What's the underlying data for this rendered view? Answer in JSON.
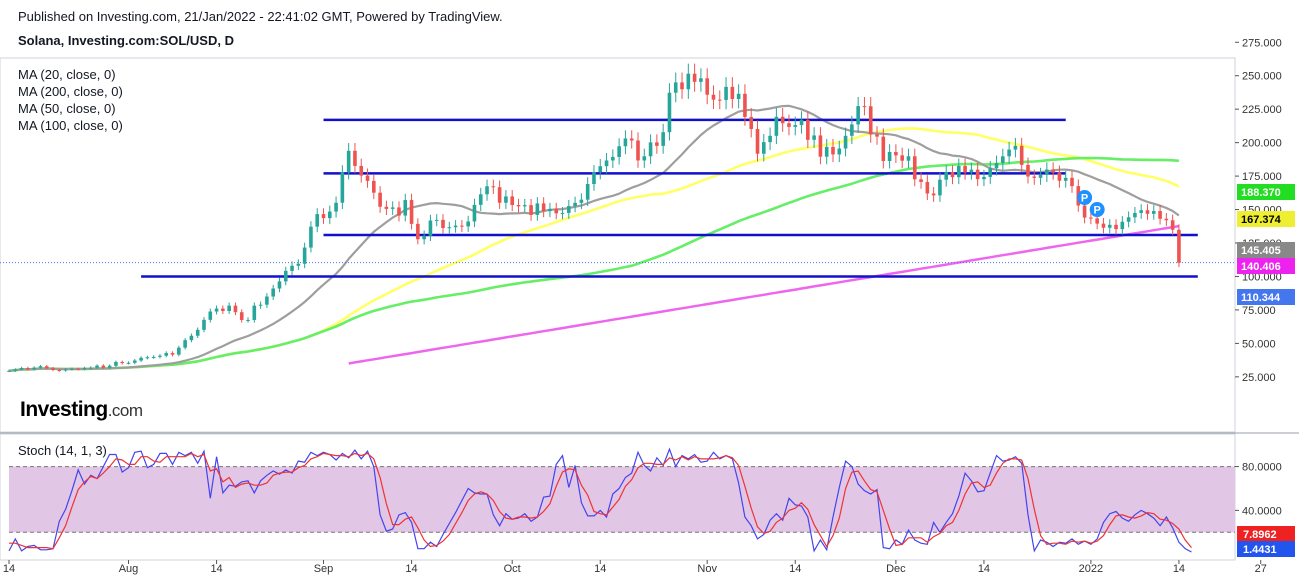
{
  "header": {
    "published": "Published on Investing.com, 21/Jan/2022 - 22:41:02 GMT, Powered by TradingView.",
    "symbol": "Solana, Investing.com:SOL/USD, D"
  },
  "legend": {
    "ma": [
      "MA (20, close, 0)",
      "MA (200, close, 0)",
      "MA (50, close, 0)",
      "MA (100, close, 0)"
    ],
    "stoch": "Stoch (14, 1, 3)"
  },
  "logo": {
    "main": "Investing",
    "suffix": ".com"
  },
  "colors": {
    "up": "#26a69a",
    "down": "#ef5350",
    "ma20": "#9e9e9e",
    "ma50": "#ffff66",
    "ma100": "#66ee66",
    "ma200": "#ee66ee",
    "level": "#1111cc",
    "stoch_k": "#4444ee",
    "stoch_d": "#ee3333",
    "stoch_band": "#e1c6e6"
  },
  "chart_data": [
    {
      "type": "candlestick",
      "title": "Solana, Investing.com:SOL/USD, D",
      "price_axis": {
        "ticks": [
          "275.000",
          "250.000",
          "225.000",
          "200.000",
          "175.000",
          "150.000",
          "125.000",
          "100.000",
          "75.000",
          "50.000",
          "25.000"
        ],
        "range": [
          10,
          290
        ]
      },
      "time_axis": {
        "ticks": [
          "14",
          "Aug",
          "14",
          "Sep",
          "14",
          "Oct",
          "14",
          "Nov",
          "14",
          "Dec",
          "14",
          "2022",
          "14",
          "27"
        ]
      },
      "horizontal_levels": [
        {
          "price": 100,
          "from_day": 21,
          "to_day": 189
        },
        {
          "price": 131,
          "from_day": 50,
          "to_day": 189
        },
        {
          "price": 177,
          "from_day": 50,
          "to_day": 168
        },
        {
          "price": 217,
          "from_day": 50,
          "to_day": 168
        }
      ],
      "last_values": [
        {
          "label": "188.370",
          "color": "#22dd22",
          "price": 188.37
        },
        {
          "label": "167.374",
          "color": "#eeee33",
          "price": 167.374
        },
        {
          "label": "145.405",
          "color": "#888888",
          "price": 145.405
        },
        {
          "label": "140.406",
          "color": "#ee22ee",
          "price": 140.406
        },
        {
          "label": "110.344",
          "color": "#4477ee",
          "price": 110.344
        }
      ],
      "markers": [
        {
          "label": "P",
          "day": 171,
          "price": 159
        },
        {
          "label": "P",
          "day": 173,
          "price": 150
        }
      ],
      "closes": [
        29.5,
        30.5,
        31.6,
        30.6,
        31.9,
        32.9,
        31.5,
        30.1,
        29.7,
        30.6,
        31.0,
        30.7,
        31.6,
        31.9,
        33.4,
        31.8,
        33.3,
        36.1,
        35.3,
        35.5,
        37.2,
        39.2,
        39.6,
        39.9,
        40.8,
        42.8,
        41.6,
        46.8,
        52.4,
        55.7,
        60.1,
        67.6,
        73.8,
        76.0,
        74.2,
        78.2,
        73.3,
        67.5,
        67.5,
        78.2,
        78.9,
        85.0,
        91.0,
        96.3,
        104.2,
        108.0,
        109.5,
        121.6,
        137.2,
        146.6,
        143.6,
        148.5,
        155.1,
        177.8,
        193.9,
        182.6,
        175.4,
        171.4,
        162.6,
        152.1,
        150.5,
        151.6,
        145.5,
        157.1,
        139.3,
        127.8,
        130.4,
        141.8,
        142.3,
        136.2,
        136.8,
        138.0,
        137.4,
        141.1,
        153.5,
        161.4,
        167.4,
        166.7,
        155.1,
        159.8,
        153.4,
        152.4,
        153.3,
        146.0,
        154.6,
        148.8,
        150.5,
        147.2,
        147.5,
        152.6,
        155.0,
        157.4,
        169.1,
        177.9,
        182.4,
        186.7,
        189.3,
        197.3,
        203.1,
        201.6,
        186.7,
        189.8,
        200.2,
        197.6,
        207.8,
        237.3,
        245.0,
        239.9,
        251.5,
        245.4,
        248.1,
        235.8,
        232.1,
        231.9,
        241.7,
        232.6,
        236.5,
        219.2,
        210.2,
        191.7,
        200.4,
        205.1,
        219.3,
        214.5,
        211.8,
        213.1,
        217.0,
        202.1,
        205.4,
        189.5,
        196.8,
        191.2,
        195.6,
        205.1,
        213.6,
        227.3,
        227.2,
        206.1,
        204.5,
        186.3,
        193.0,
        190.5,
        186.5,
        189.8,
        172.6,
        170.6,
        162.0,
        160.6,
        172.3,
        177.8,
        174.2,
        182.6,
        177.7,
        179.8,
        172.7,
        174.4,
        180.9,
        184.8,
        189.8,
        194.8,
        197.6,
        183.4,
        174.7,
        173.7,
        175.9,
        179.9,
        177.6,
        171.5,
        173.7,
        167.5,
        153.0,
        144.0,
        143.4,
        139.5,
        136.4,
        138.6,
        135.4,
        140.9,
        144.2,
        147.5,
        149.5,
        146.8,
        148.9,
        143.1,
        142.0,
        134.9,
        110.3
      ]
    },
    {
      "type": "line",
      "title": "Stoch (14, 1, 3)",
      "ylim": [
        0,
        105
      ],
      "y_ticks": [
        "80.0000",
        "40.0000"
      ],
      "band": [
        20,
        80
      ],
      "last_values": [
        {
          "label": "7.8962",
          "color": "#ee2222"
        },
        {
          "label": "1.4431",
          "color": "#2255ee"
        }
      ],
      "series": [
        {
          "name": "%K",
          "values": [
            3,
            14,
            3,
            7,
            8,
            4,
            4,
            5,
            30,
            41,
            58,
            77,
            64,
            72,
            69,
            80,
            91,
            91,
            75,
            79,
            93,
            94,
            79,
            82,
            92,
            92,
            82,
            93,
            90,
            93,
            83,
            94,
            51,
            89,
            56,
            63,
            62,
            66,
            67,
            56,
            67,
            72,
            76,
            73,
            77,
            74,
            85,
            84,
            93,
            90,
            93,
            91,
            86,
            92,
            88,
            95,
            87,
            94,
            80,
            36,
            21,
            23,
            36,
            38,
            29,
            5,
            5,
            11,
            7,
            18,
            28,
            38,
            49,
            60,
            56,
            55,
            55,
            36,
            26,
            37,
            32,
            33,
            37,
            30,
            34,
            52,
            53,
            82,
            90,
            61,
            81,
            47,
            35,
            35,
            40,
            34,
            55,
            60,
            70,
            74,
            93,
            81,
            76,
            88,
            81,
            96,
            80,
            90,
            87,
            91,
            84,
            85,
            93,
            87,
            90,
            87,
            65,
            34,
            26,
            14,
            18,
            31,
            37,
            31,
            51,
            45,
            44,
            34,
            3,
            13,
            4,
            34,
            61,
            85,
            80,
            64,
            58,
            55,
            59,
            6,
            5,
            13,
            9,
            22,
            13,
            10,
            9,
            29,
            20,
            29,
            37,
            53,
            74,
            67,
            57,
            58,
            74,
            90,
            85,
            86,
            89,
            83,
            36,
            3,
            13,
            11,
            7,
            11,
            10,
            14,
            9,
            12,
            9,
            14,
            29,
            37,
            39,
            33,
            30,
            36,
            40,
            37,
            33,
            26,
            34,
            24,
            11,
            5,
            2
          ]
        },
        {
          "name": "%D",
          "values": [
            10,
            10,
            8,
            6,
            6,
            6,
            6,
            5,
            15,
            26,
            43,
            59,
            66,
            71,
            69,
            74,
            80,
            87,
            86,
            82,
            82,
            89,
            89,
            85,
            84,
            89,
            89,
            89,
            89,
            92,
            89,
            91,
            76,
            78,
            66,
            70,
            61,
            64,
            65,
            63,
            63,
            65,
            72,
            74,
            75,
            75,
            79,
            81,
            87,
            89,
            92,
            91,
            90,
            90,
            89,
            92,
            90,
            92,
            87,
            70,
            46,
            27,
            27,
            32,
            34,
            24,
            13,
            7,
            8,
            12,
            18,
            28,
            38,
            49,
            55,
            57,
            55,
            49,
            39,
            33,
            32,
            34,
            34,
            33,
            34,
            39,
            46,
            62,
            75,
            78,
            77,
            63,
            54,
            39,
            37,
            36,
            43,
            50,
            62,
            68,
            79,
            83,
            83,
            82,
            82,
            88,
            86,
            89,
            86,
            89,
            87,
            87,
            87,
            88,
            90,
            88,
            81,
            62,
            42,
            25,
            19,
            21,
            29,
            33,
            40,
            42,
            47,
            41,
            27,
            17,
            7,
            17,
            33,
            60,
            75,
            76,
            67,
            59,
            57,
            40,
            23,
            8,
            9,
            15,
            15,
            15,
            11,
            16,
            19,
            26,
            29,
            40,
            55,
            65,
            66,
            61,
            63,
            74,
            83,
            87,
            87,
            86,
            69,
            41,
            17,
            9,
            10,
            10,
            9,
            12,
            11,
            12,
            10,
            12,
            17,
            27,
            35,
            36,
            34,
            33,
            35,
            38,
            37,
            32,
            31,
            28,
            23,
            13,
            6
          ]
        }
      ]
    }
  ]
}
